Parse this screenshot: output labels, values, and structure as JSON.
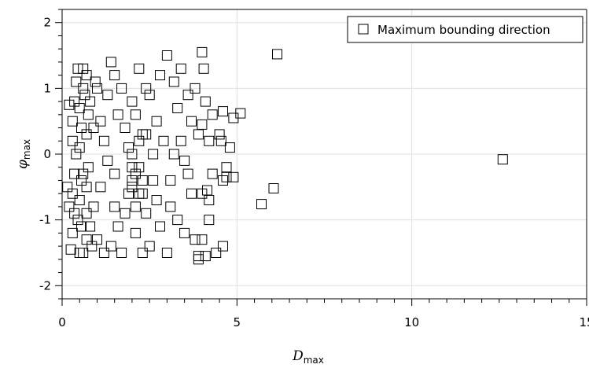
{
  "chart_data": {
    "type": "scatter",
    "xlabel": {
      "symbol": "D",
      "subscript": "max"
    },
    "ylabel": {
      "symbol": "φ",
      "subscript": "max"
    },
    "xlim": [
      0,
      15
    ],
    "ylim": [
      -2.2,
      2.2
    ],
    "xticks": [
      0,
      5,
      10,
      15
    ],
    "yticks": [
      -2,
      -1,
      0,
      1,
      2
    ],
    "grid": true,
    "legend_position": "top-right",
    "series": [
      {
        "name": "Maximum bounding direction",
        "marker": "open-square",
        "color": "#000000",
        "points": [
          [
            0.25,
            -1.45
          ],
          [
            0.3,
            -1.2
          ],
          [
            0.35,
            -0.9
          ],
          [
            0.3,
            -0.6
          ],
          [
            0.35,
            -0.3
          ],
          [
            0.3,
            0.2
          ],
          [
            0.3,
            0.5
          ],
          [
            0.35,
            0.8
          ],
          [
            0.4,
            1.1
          ],
          [
            0.45,
            1.3
          ],
          [
            0.5,
            -1.5
          ],
          [
            0.55,
            -1.1
          ],
          [
            0.5,
            -0.7
          ],
          [
            0.55,
            -0.4
          ],
          [
            0.5,
            0.1
          ],
          [
            0.55,
            0.4
          ],
          [
            0.5,
            0.7
          ],
          [
            0.6,
            1.0
          ],
          [
            0.6,
            1.3
          ],
          [
            0.7,
            -1.3
          ],
          [
            0.7,
            -0.9
          ],
          [
            0.7,
            -0.5
          ],
          [
            0.75,
            -0.2
          ],
          [
            0.7,
            0.3
          ],
          [
            0.75,
            0.6
          ],
          [
            0.7,
            1.2
          ],
          [
            0.85,
            -1.4
          ],
          [
            0.9,
            -0.8
          ],
          [
            0.9,
            0.4
          ],
          [
            0.95,
            1.1
          ],
          [
            0.2,
            -0.8
          ],
          [
            0.15,
            -0.5
          ],
          [
            0.2,
            0.75
          ],
          [
            0.45,
            -1.0
          ],
          [
            0.6,
            -0.3
          ],
          [
            0.65,
            0.9
          ],
          [
            0.8,
            -1.1
          ],
          [
            0.8,
            0.8
          ],
          [
            0.4,
            0.0
          ],
          [
            0.6,
            -1.5
          ],
          [
            1.0,
            -1.3
          ],
          [
            1.1,
            -0.5
          ],
          [
            1.2,
            0.2
          ],
          [
            1.3,
            0.9
          ],
          [
            1.4,
            -1.4
          ],
          [
            1.5,
            -0.3
          ],
          [
            1.6,
            0.6
          ],
          [
            1.5,
            1.2
          ],
          [
            1.7,
            -1.5
          ],
          [
            1.8,
            -0.9
          ],
          [
            1.9,
            0.1
          ],
          [
            2.0,
            0.8
          ],
          [
            2.1,
            -1.2
          ],
          [
            2.2,
            -0.6
          ],
          [
            2.3,
            0.3
          ],
          [
            2.4,
            1.0
          ],
          [
            2.5,
            -1.4
          ],
          [
            2.6,
            -0.4
          ],
          [
            2.7,
            0.5
          ],
          [
            2.8,
            1.2
          ],
          [
            1.2,
            -1.5
          ],
          [
            1.3,
            -0.1
          ],
          [
            1.4,
            1.4
          ],
          [
            1.6,
            -1.1
          ],
          [
            1.8,
            0.4
          ],
          [
            2.0,
            -0.2
          ],
          [
            2.2,
            1.3
          ],
          [
            2.4,
            -0.9
          ],
          [
            2.6,
            0.0
          ],
          [
            2.8,
            -1.1
          ],
          [
            1.0,
            1.0
          ],
          [
            1.1,
            0.5
          ],
          [
            1.7,
            1.0
          ],
          [
            1.9,
            -0.6
          ],
          [
            2.1,
            0.6
          ],
          [
            2.3,
            -1.5
          ],
          [
            2.5,
            0.9
          ],
          [
            2.7,
            -0.7
          ],
          [
            2.9,
            0.2
          ],
          [
            1.5,
            -0.8
          ],
          [
            2.0,
            -0.4
          ],
          [
            2.1,
            -0.3
          ],
          [
            2.2,
            -0.2
          ],
          [
            2.0,
            -0.5
          ],
          [
            2.3,
            -0.4
          ],
          [
            2.2,
            0.2
          ],
          [
            2.4,
            0.3
          ],
          [
            2.1,
            -0.8
          ],
          [
            2.3,
            -0.6
          ],
          [
            2.0,
            0.0
          ],
          [
            3.0,
            -1.5
          ],
          [
            3.1,
            -0.8
          ],
          [
            3.2,
            0.0
          ],
          [
            3.3,
            0.7
          ],
          [
            3.4,
            1.3
          ],
          [
            3.5,
            -1.2
          ],
          [
            3.6,
            -0.3
          ],
          [
            3.7,
            0.5
          ],
          [
            3.8,
            1.0
          ],
          [
            3.9,
            -1.6
          ],
          [
            3.0,
            1.5
          ],
          [
            3.1,
            -0.4
          ],
          [
            3.3,
            -1.0
          ],
          [
            3.4,
            0.2
          ],
          [
            3.6,
            0.9
          ],
          [
            3.7,
            -0.6
          ],
          [
            3.9,
            0.3
          ],
          [
            3.2,
            1.1
          ],
          [
            3.5,
            -0.1
          ],
          [
            3.8,
            -1.3
          ],
          [
            4.0,
            -1.3
          ],
          [
            4.0,
            -0.6
          ],
          [
            4.0,
            0.45
          ],
          [
            4.1,
            0.8
          ],
          [
            4.05,
            1.3
          ],
          [
            4.2,
            -1.0
          ],
          [
            4.3,
            -0.3
          ],
          [
            4.2,
            0.2
          ],
          [
            4.3,
            0.6
          ],
          [
            4.0,
            1.55
          ],
          [
            4.5,
            0.3
          ],
          [
            4.6,
            0.65
          ],
          [
            4.6,
            -0.4
          ],
          [
            4.7,
            -0.2
          ],
          [
            4.8,
            0.1
          ],
          [
            4.9,
            0.55
          ],
          [
            4.6,
            -1.4
          ],
          [
            4.7,
            -0.35
          ],
          [
            4.4,
            -1.5
          ],
          [
            4.2,
            -0.7
          ],
          [
            5.1,
            0.62
          ],
          [
            4.9,
            -0.35
          ],
          [
            4.55,
            0.2
          ],
          [
            4.15,
            -0.55
          ],
          [
            6.15,
            1.52
          ],
          [
            6.05,
            -0.52
          ],
          [
            5.7,
            -0.76
          ],
          [
            12.6,
            -0.08
          ],
          [
            3.9,
            -1.55
          ],
          [
            4.1,
            -1.55
          ]
        ]
      }
    ]
  }
}
